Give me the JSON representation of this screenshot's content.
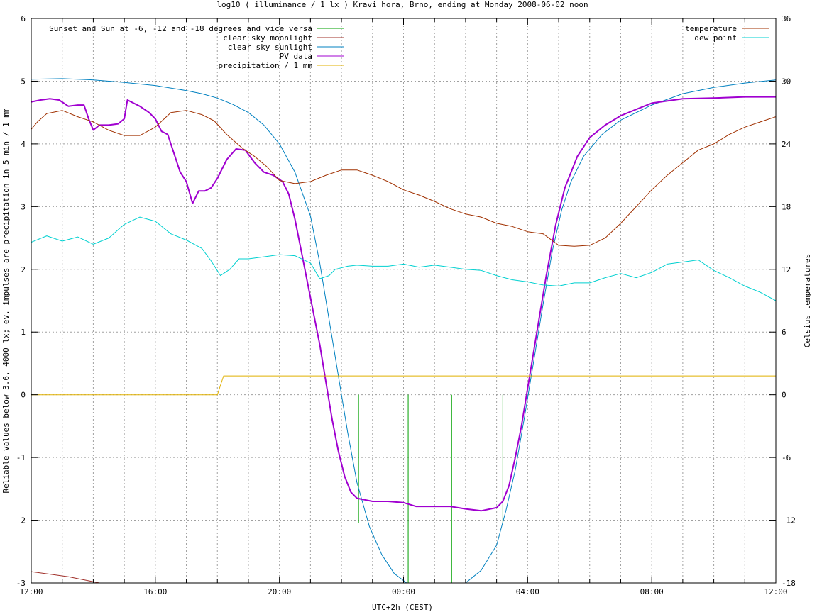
{
  "chart_data": {
    "type": "line",
    "title": "log10 ( illuminance / 1 lx ) Kravi hora, Brno, ending at Monday 2008-06-02 noon",
    "xlabel": "UTC+2h (CEST)",
    "ylabel": "Reliable values below 3.6, 4000 lx; ev. impulses are precipitation in 5 min / 1 mm",
    "y2label": "Celsius temperatures",
    "xlim": [
      0,
      24
    ],
    "ylim": [
      -3,
      6
    ],
    "y2lim": [
      -18,
      36
    ],
    "grid": true,
    "x_major_ticks": [
      0,
      4,
      8,
      12,
      16,
      20,
      24
    ],
    "x_tick_labels": [
      "12:00",
      "16:00",
      "20:00",
      "00:00",
      "04:00",
      "08:00",
      "12:00"
    ],
    "x_minor_ticks": [
      1,
      2,
      3,
      5,
      6,
      7,
      9,
      10,
      11,
      13,
      14,
      15,
      17,
      18,
      19,
      21,
      22,
      23
    ],
    "y_ticks": [
      -3,
      -2,
      -1,
      0,
      1,
      2,
      3,
      4,
      5,
      6
    ],
    "y_tick_labels": [
      "-3",
      "-2",
      "-1",
      "0",
      "1",
      "2",
      "3",
      "4",
      "5",
      "6"
    ],
    "y2_ticks": [
      -18,
      -12,
      -6,
      0,
      6,
      12,
      18,
      24,
      30,
      36
    ],
    "y2_tick_labels": [
      "-18",
      "-12",
      "-6",
      "0",
      "6",
      "12",
      "18",
      "24",
      "30",
      "36"
    ],
    "legend_left": "top-left",
    "legend_right": "top-right",
    "series": [
      {
        "name": "Sunset and Sun at -6, -12 and -18 degrees and vice versa",
        "color": "#00a000",
        "axis": "left",
        "kind": "impulses",
        "impulses": [
          [
            8.85,
            0
          ],
          [
            9.55,
            0
          ],
          [
            10.55,
            -2.05
          ],
          [
            12.15,
            -3
          ],
          [
            13.55,
            -3
          ],
          [
            15.2,
            -2.05
          ],
          [
            16.15,
            0
          ],
          [
            16.85,
            0
          ]
        ],
        "legend_side": "left"
      },
      {
        "name": "clear sky moonlight",
        "color": "#a0302a",
        "axis": "left",
        "points": [
          [
            0,
            -2.82
          ],
          [
            0.6,
            -2.86
          ],
          [
            1.2,
            -2.9
          ],
          [
            1.8,
            -2.96
          ],
          [
            2.2,
            -3
          ]
        ],
        "legend_side": "left"
      },
      {
        "name": "clear sky sunlight",
        "color": "#0080c0",
        "axis": "left",
        "points": [
          [
            0,
            5.03
          ],
          [
            1,
            5.04
          ],
          [
            2,
            5.02
          ],
          [
            3,
            4.98
          ],
          [
            4,
            4.93
          ],
          [
            5,
            4.85
          ],
          [
            5.5,
            4.8
          ],
          [
            6,
            4.73
          ],
          [
            6.5,
            4.63
          ],
          [
            7,
            4.5
          ],
          [
            7.5,
            4.3
          ],
          [
            8,
            4.0
          ],
          [
            8.5,
            3.55
          ],
          [
            9,
            2.85
          ],
          [
            9.3,
            2.1
          ],
          [
            9.6,
            1.2
          ],
          [
            9.9,
            0.3
          ],
          [
            10.2,
            -0.6
          ],
          [
            10.5,
            -1.4
          ],
          [
            10.9,
            -2.1
          ],
          [
            11.3,
            -2.55
          ],
          [
            11.7,
            -2.85
          ],
          [
            12.1,
            -3.0
          ],
          [
            12.5,
            -3.08
          ],
          [
            13.0,
            -3.1
          ],
          [
            13.5,
            -3.08
          ],
          [
            14.0,
            -3.0
          ],
          [
            14.5,
            -2.8
          ],
          [
            15.0,
            -2.4
          ],
          [
            15.3,
            -1.85
          ],
          [
            15.6,
            -1.2
          ],
          [
            15.9,
            -0.35
          ],
          [
            16.2,
            0.55
          ],
          [
            16.5,
            1.45
          ],
          [
            16.8,
            2.3
          ],
          [
            17.1,
            2.95
          ],
          [
            17.4,
            3.4
          ],
          [
            17.8,
            3.8
          ],
          [
            18.4,
            4.15
          ],
          [
            19,
            4.38
          ],
          [
            20,
            4.62
          ],
          [
            21,
            4.8
          ],
          [
            22,
            4.9
          ],
          [
            23,
            4.97
          ],
          [
            24,
            5.02
          ]
        ],
        "legend_side": "left"
      },
      {
        "name": "PV data",
        "color": "#a000d0",
        "axis": "left",
        "points": [
          [
            0,
            4.67
          ],
          [
            0.3,
            4.7
          ],
          [
            0.6,
            4.72
          ],
          [
            0.9,
            4.7
          ],
          [
            1.2,
            4.6
          ],
          [
            1.5,
            4.62
          ],
          [
            1.7,
            4.62
          ],
          [
            1.85,
            4.4
          ],
          [
            2.0,
            4.22
          ],
          [
            2.2,
            4.3
          ],
          [
            2.5,
            4.3
          ],
          [
            2.8,
            4.32
          ],
          [
            3.0,
            4.4
          ],
          [
            3.1,
            4.7
          ],
          [
            3.3,
            4.65
          ],
          [
            3.5,
            4.6
          ],
          [
            3.8,
            4.5
          ],
          [
            4.0,
            4.4
          ],
          [
            4.2,
            4.2
          ],
          [
            4.4,
            4.15
          ],
          [
            4.6,
            3.85
          ],
          [
            4.8,
            3.55
          ],
          [
            5.0,
            3.4
          ],
          [
            5.2,
            3.05
          ],
          [
            5.4,
            3.25
          ],
          [
            5.6,
            3.25
          ],
          [
            5.8,
            3.3
          ],
          [
            6.0,
            3.45
          ],
          [
            6.3,
            3.75
          ],
          [
            6.6,
            3.92
          ],
          [
            6.9,
            3.9
          ],
          [
            7.2,
            3.7
          ],
          [
            7.5,
            3.55
          ],
          [
            7.8,
            3.5
          ],
          [
            8.1,
            3.4
          ],
          [
            8.3,
            3.2
          ],
          [
            8.5,
            2.8
          ],
          [
            8.7,
            2.3
          ],
          [
            8.9,
            1.8
          ],
          [
            9.1,
            1.3
          ],
          [
            9.3,
            0.8
          ],
          [
            9.5,
            0.2
          ],
          [
            9.7,
            -0.4
          ],
          [
            9.9,
            -0.9
          ],
          [
            10.1,
            -1.3
          ],
          [
            10.3,
            -1.55
          ],
          [
            10.5,
            -1.65
          ],
          [
            11,
            -1.7
          ],
          [
            11.5,
            -1.7
          ],
          [
            12.0,
            -1.72
          ],
          [
            12.4,
            -1.78
          ],
          [
            13,
            -1.78
          ],
          [
            13.5,
            -1.78
          ],
          [
            14,
            -1.82
          ],
          [
            14.5,
            -1.85
          ],
          [
            15.0,
            -1.8
          ],
          [
            15.2,
            -1.7
          ],
          [
            15.4,
            -1.45
          ],
          [
            15.6,
            -1.0
          ],
          [
            15.8,
            -0.5
          ],
          [
            16.0,
            0.1
          ],
          [
            16.3,
            1.0
          ],
          [
            16.6,
            1.9
          ],
          [
            16.9,
            2.7
          ],
          [
            17.2,
            3.3
          ],
          [
            17.6,
            3.8
          ],
          [
            18.0,
            4.1
          ],
          [
            18.5,
            4.3
          ],
          [
            19.0,
            4.45
          ],
          [
            19.5,
            4.55
          ],
          [
            20,
            4.65
          ],
          [
            21,
            4.72
          ],
          [
            22,
            4.73
          ],
          [
            23,
            4.75
          ],
          [
            24,
            4.75
          ]
        ],
        "legend_side": "left"
      },
      {
        "name": "precipitation / 1 mm",
        "color": "#e0b000",
        "axis": "left",
        "points": [
          [
            0,
            0
          ],
          [
            6.0,
            0
          ],
          [
            6.1,
            0.15
          ],
          [
            6.2,
            0.3
          ],
          [
            24,
            0.3
          ]
        ],
        "legend_side": "left"
      },
      {
        "name": "temperature",
        "color": "#a03000",
        "axis": "right",
        "points": [
          [
            0,
            25.4
          ],
          [
            0.2,
            26.1
          ],
          [
            0.5,
            26.9
          ],
          [
            1.0,
            27.2
          ],
          [
            1.5,
            26.6
          ],
          [
            2.0,
            26.1
          ],
          [
            2.5,
            25.3
          ],
          [
            3.0,
            24.8
          ],
          [
            3.5,
            24.8
          ],
          [
            4.0,
            25.6
          ],
          [
            4.5,
            27.0
          ],
          [
            5.0,
            27.2
          ],
          [
            5.5,
            26.8
          ],
          [
            5.9,
            26.2
          ],
          [
            6.3,
            24.9
          ],
          [
            6.8,
            23.6
          ],
          [
            7.2,
            22.8
          ],
          [
            7.6,
            21.8
          ],
          [
            8.0,
            20.5
          ],
          [
            8.5,
            20.2
          ],
          [
            9.0,
            20.4
          ],
          [
            9.5,
            21.0
          ],
          [
            10.0,
            21.5
          ],
          [
            10.5,
            21.5
          ],
          [
            11.0,
            21.0
          ],
          [
            11.5,
            20.4
          ],
          [
            12.0,
            19.6
          ],
          [
            12.5,
            19.1
          ],
          [
            13.0,
            18.5
          ],
          [
            13.5,
            17.8
          ],
          [
            14.0,
            17.3
          ],
          [
            14.5,
            17.0
          ],
          [
            15.0,
            16.4
          ],
          [
            15.5,
            16.1
          ],
          [
            16.0,
            15.6
          ],
          [
            16.5,
            15.4
          ],
          [
            17.0,
            14.3
          ],
          [
            17.5,
            14.2
          ],
          [
            18.0,
            14.3
          ],
          [
            18.5,
            15.0
          ],
          [
            19.0,
            16.4
          ],
          [
            19.5,
            18.0
          ],
          [
            20.0,
            19.6
          ],
          [
            20.5,
            21.0
          ],
          [
            21.0,
            22.2
          ],
          [
            21.5,
            23.4
          ],
          [
            22.0,
            24.0
          ],
          [
            22.5,
            24.9
          ],
          [
            23.0,
            25.6
          ],
          [
            23.5,
            26.1
          ],
          [
            24,
            26.6
          ]
        ],
        "legend_side": "right"
      },
      {
        "name": "dew point",
        "color": "#00d0d0",
        "axis": "right",
        "points": [
          [
            0,
            14.6
          ],
          [
            0.5,
            15.2
          ],
          [
            1.0,
            14.7
          ],
          [
            1.5,
            15.1
          ],
          [
            2.0,
            14.4
          ],
          [
            2.5,
            15.0
          ],
          [
            3.0,
            16.3
          ],
          [
            3.5,
            17.0
          ],
          [
            4.0,
            16.6
          ],
          [
            4.5,
            15.4
          ],
          [
            5.0,
            14.8
          ],
          [
            5.5,
            14.0
          ],
          [
            5.8,
            12.8
          ],
          [
            6.1,
            11.4
          ],
          [
            6.4,
            12.0
          ],
          [
            6.7,
            13.0
          ],
          [
            7.0,
            13.0
          ],
          [
            7.5,
            13.2
          ],
          [
            8.0,
            13.4
          ],
          [
            8.5,
            13.3
          ],
          [
            9.0,
            12.6
          ],
          [
            9.3,
            11.1
          ],
          [
            9.6,
            11.4
          ],
          [
            9.8,
            12.0
          ],
          [
            10.2,
            12.3
          ],
          [
            10.5,
            12.4
          ],
          [
            11.0,
            12.3
          ],
          [
            11.5,
            12.3
          ],
          [
            12.0,
            12.5
          ],
          [
            12.5,
            12.2
          ],
          [
            13.0,
            12.4
          ],
          [
            13.5,
            12.2
          ],
          [
            14.0,
            12.0
          ],
          [
            14.5,
            11.9
          ],
          [
            15.0,
            11.4
          ],
          [
            15.5,
            11.0
          ],
          [
            16.0,
            10.8
          ],
          [
            16.5,
            10.5
          ],
          [
            17.0,
            10.4
          ],
          [
            17.5,
            10.7
          ],
          [
            18.0,
            10.7
          ],
          [
            18.5,
            11.2
          ],
          [
            19.0,
            11.6
          ],
          [
            19.5,
            11.2
          ],
          [
            20.0,
            11.7
          ],
          [
            20.5,
            12.5
          ],
          [
            21.0,
            12.7
          ],
          [
            21.5,
            12.9
          ],
          [
            22.0,
            11.9
          ],
          [
            22.5,
            11.2
          ],
          [
            23.0,
            10.4
          ],
          [
            23.5,
            9.8
          ],
          [
            24,
            9.0
          ]
        ],
        "legend_side": "right"
      }
    ]
  }
}
